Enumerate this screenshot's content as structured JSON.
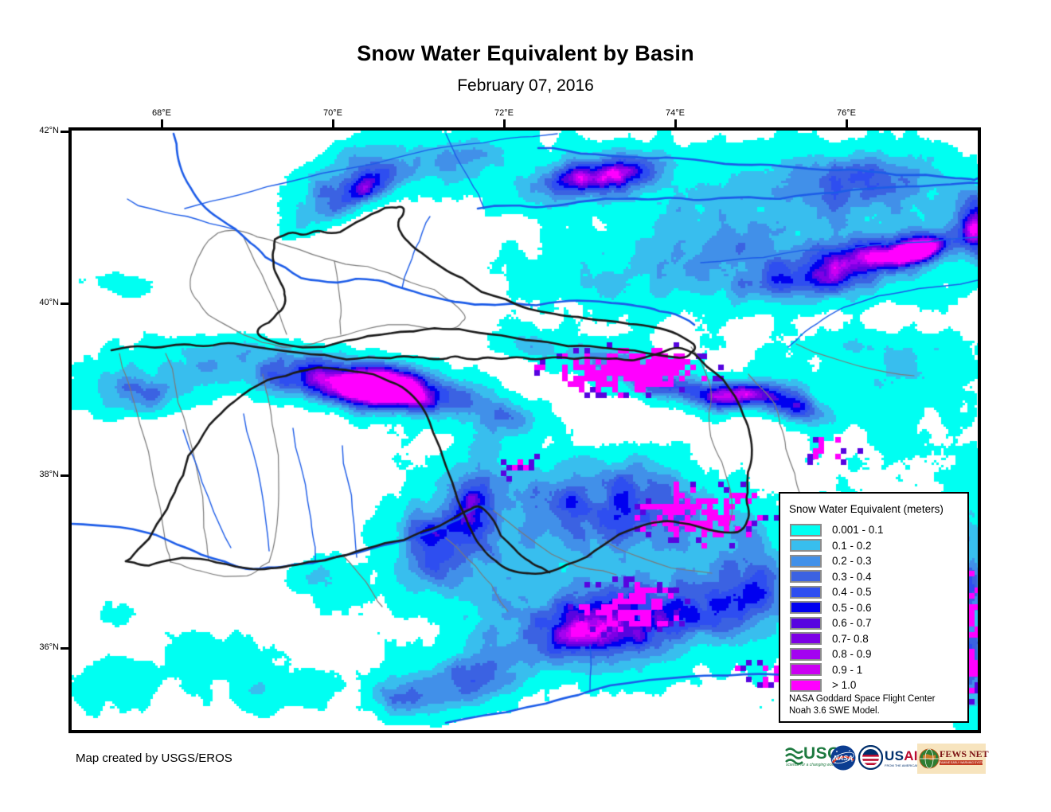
{
  "title": "Snow Water Equivalent by Basin",
  "subtitle": "February 07, 2016",
  "axes": {
    "lon": [
      "68°E",
      "70°E",
      "72°E",
      "74°E",
      "76°E"
    ],
    "lat": [
      "42°N",
      "40°N",
      "38°N",
      "36°N"
    ]
  },
  "legend": {
    "title": "Snow Water Equivalent (meters)",
    "items": [
      {
        "label": "0.001 - 0.1",
        "color": "#00FFF2"
      },
      {
        "label": "0.1 - 0.2",
        "color": "#38BEEE"
      },
      {
        "label": "0.2 - 0.3",
        "color": "#4190E9"
      },
      {
        "label": "0.3 - 0.4",
        "color": "#3B62E2"
      },
      {
        "label": "0.4 - 0.5",
        "color": "#2E4EF0"
      },
      {
        "label": "0.5 - 0.6",
        "color": "#0000F0"
      },
      {
        "label": "0.6 - 0.7",
        "color": "#5704E0"
      },
      {
        "label": "0.7- 0.8",
        "color": "#7D00E5"
      },
      {
        "label": "0.8 - 0.9",
        "color": "#A303F0"
      },
      {
        "label": "0.9 - 1",
        "color": "#CB00F2"
      },
      {
        "label": "> 1.0",
        "color": "#FF00FF"
      }
    ],
    "source_line1": "NASA Goddard Space Flight Center",
    "source_line2": "Noah 3.6 SWE Model."
  },
  "footer": {
    "credit": "Map created by USGS/EROS"
  },
  "logos": {
    "usgs": {
      "name": "USGS",
      "tagline": "science for a changing world"
    },
    "nasa": {
      "name": "NASA"
    },
    "usaid": {
      "us": "US",
      "aid": "AID",
      "tagline": "FROM THE AMERICAN PEOPLE"
    },
    "fewsnet": {
      "name": "FEWS NET",
      "tagline": "FAMINE EARLY WARNING SYSTEMS NETWORK"
    }
  },
  "map_colors": {
    "background": "#FFFFFF",
    "river": "#1C5CE8",
    "basin_outline": "#1B1B1B",
    "subbasin_outline": "#7A7A7A",
    "frame": "#000000"
  }
}
